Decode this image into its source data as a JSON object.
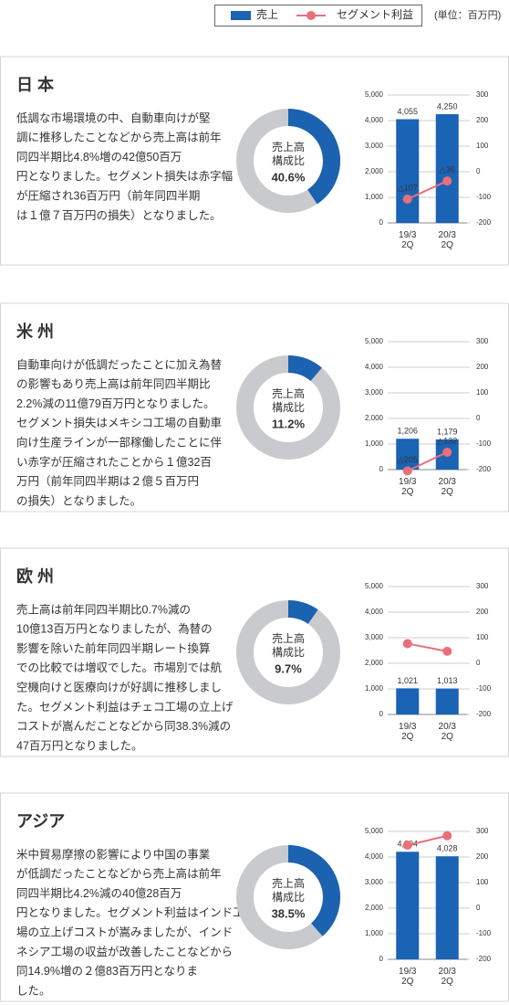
{
  "unit": "(単位：百万円)",
  "sections": [
    {
      "heading": "日 本",
      "body": [
        "低調な市場環境の中、自動車向けが堅",
        "調に推移したことなどから売上高は前年",
        "同四半期比4.8%増の42億50百万",
        "円となりました。セグメント損失は赤字幅",
        "が圧縮され36百万円（前年同四半期",
        "は１億７百万円の損失）となりました。"
      ]
    },
    {
      "heading": "米 州",
      "body": [
        "自動車向けが低調だったことに加え為替",
        "の影響もあり売上高は前年同四半期比",
        "2.2%減の11億79百万円となりました。",
        "セグメント損失はメキシコ工場の自動車",
        "向け生産ラインが一部稼働したことに伴",
        "い赤字が圧縮されたことから１億32百",
        "万円（前年同四半期は２億５百万円",
        "の損失）となりました。"
      ]
    },
    {
      "heading": "欧 州",
      "body": [
        "売上高は前年同四半期比0.7%減の",
        "10億13百万円となりましたが、為替の",
        "影響を除いた前年同四半期レート換算",
        "での比較では増収でした。市場別では航",
        "空機向けと医療向けが好調に推移しまし",
        "た。セグメント利益はチェコ工場の立上げ",
        "コストが嵩んだことなどから同38.3%減の",
        "47百万円となりました。"
      ]
    },
    {
      "heading": "アジア",
      "body": [
        "米中貿易摩擦の影響により中国の事業",
        "が低調だったことなどから売上高は前年",
        "同四半期比4.2%減の40億28百万",
        "円となりました。セグメント利益はインド工",
        "場の立上げコストが嵩みましたが、インド",
        "ネシア工場の収益が改善したことなどから",
        "同14.9%増の２億83百万円となりま",
        "した。"
      ]
    }
  ],
  "chart_data": [
    {
      "type": "donut",
      "center_label": "売上高\n構成比",
      "value": 40.6,
      "value_label": "40.6%",
      "color": "#1b62b0",
      "rest_color": "#c9cacd"
    },
    {
      "type": "combo",
      "categories": [
        "19/3\n2Q",
        "20/3\n2Q"
      ],
      "ylim": [
        0,
        5000
      ],
      "yticks": [
        0,
        {
          "value": 1000,
          "label": "1,000"
        },
        {
          "value": 2000,
          "label": "2,000"
        },
        {
          "value": 3000,
          "label": "3,000"
        },
        {
          "value": 4000,
          "label": "4,000"
        },
        {
          "value": 5000,
          "label": "5,000"
        }
      ],
      "y2lim": [
        -200,
        300
      ],
      "y2ticks": [
        -200,
        -100,
        0,
        100,
        200,
        300
      ],
      "grid": true,
      "series": [
        {
          "name": "売上",
          "type": "bar",
          "color": "#1a63b5",
          "values": [
            4055,
            4250
          ],
          "value_labels": [
            "4,055",
            "4,250"
          ]
        },
        {
          "name": "セグメント利益",
          "type": "line",
          "axis": "y2",
          "color": "#e8707a",
          "values": [
            -107,
            -36
          ],
          "value_labels": [
            "△107",
            "△36"
          ]
        }
      ]
    },
    {
      "type": "donut",
      "center_label": "売上高\n構成比",
      "value": 11.2,
      "value_label": "11.2%",
      "color": "#1b62b0",
      "rest_color": "#c9cacd"
    },
    {
      "type": "combo",
      "categories": [
        "19/3\n2Q",
        "20/3\n2Q"
      ],
      "ylim": [
        0,
        5000
      ],
      "yticks": [
        0,
        {
          "value": 1000,
          "label": "1,000"
        },
        {
          "value": 2000,
          "label": "2,000"
        },
        {
          "value": 3000,
          "label": "3,000"
        },
        {
          "value": 4000,
          "label": "4,000"
        },
        {
          "value": 5000,
          "label": "5,000"
        }
      ],
      "y2lim": [
        -200,
        300
      ],
      "y2ticks": [
        -200,
        -100,
        0,
        100,
        200,
        300
      ],
      "grid": true,
      "series": [
        {
          "type": "bar",
          "color": "#1a63b5",
          "values": [
            1206,
            1179
          ],
          "value_labels": [
            "1,206",
            "1,179"
          ]
        },
        {
          "type": "line",
          "axis": "y2",
          "color": "#e8707a",
          "values": [
            -205,
            -132
          ],
          "value_labels": [
            "△205",
            "△132"
          ]
        }
      ]
    },
    {
      "type": "donut",
      "center_label": "売上高\n構成比",
      "value": 9.7,
      "value_label": "9.7%",
      "color": "#1b62b0",
      "rest_color": "#c9cacd"
    },
    {
      "type": "combo",
      "categories": [
        "19/3\n2Q",
        "20/3\n2Q"
      ],
      "ylim": [
        0,
        5000
      ],
      "yticks": [
        0,
        {
          "value": 1000,
          "label": "1,000"
        },
        {
          "value": 2000,
          "label": "2,000"
        },
        {
          "value": 3000,
          "label": "3,000"
        },
        {
          "value": 4000,
          "label": "4,000"
        },
        {
          "value": 5000,
          "label": "5,000"
        }
      ],
      "y2lim": [
        -200,
        300
      ],
      "y2ticks": [
        -200,
        -100,
        0,
        100,
        200,
        300
      ],
      "grid": true,
      "series": [
        {
          "type": "bar",
          "color": "#1a63b5",
          "values": [
            1021,
            1013
          ],
          "value_labels": [
            "1,021",
            "1,013"
          ]
        },
        {
          "type": "line",
          "axis": "y2",
          "color": "#e8707a",
          "values": [
            77,
            47
          ]
        }
      ]
    },
    {
      "type": "donut",
      "center_label": "売上高\n構成比",
      "value": 38.5,
      "value_label": "38.5%",
      "color": "#1b62b0",
      "rest_color": "#c9cacd"
    },
    {
      "type": "combo",
      "categories": [
        "19/3\n2Q",
        "20/3\n2Q"
      ],
      "ylim": [
        0,
        5000
      ],
      "yticks": [
        0,
        {
          "value": 1000,
          "label": "1,000"
        },
        {
          "value": 2000,
          "label": "2,000"
        },
        {
          "value": 3000,
          "label": "3,000"
        },
        {
          "value": 4000,
          "label": "4,000"
        },
        {
          "value": 5000,
          "label": "5,000"
        }
      ],
      "y2lim": [
        -200,
        300
      ],
      "y2ticks": [
        -200,
        -100,
        0,
        100,
        200,
        300
      ],
      "grid": true,
      "series": [
        {
          "type": "bar",
          "color": "#1a63b5",
          "values": [
            4204,
            4028
          ],
          "value_labels": [
            "4,204",
            "4,028"
          ]
        },
        {
          "type": "line",
          "axis": "y2",
          "color": "#e8707a",
          "values": [
            246,
            283
          ]
        }
      ]
    }
  ]
}
